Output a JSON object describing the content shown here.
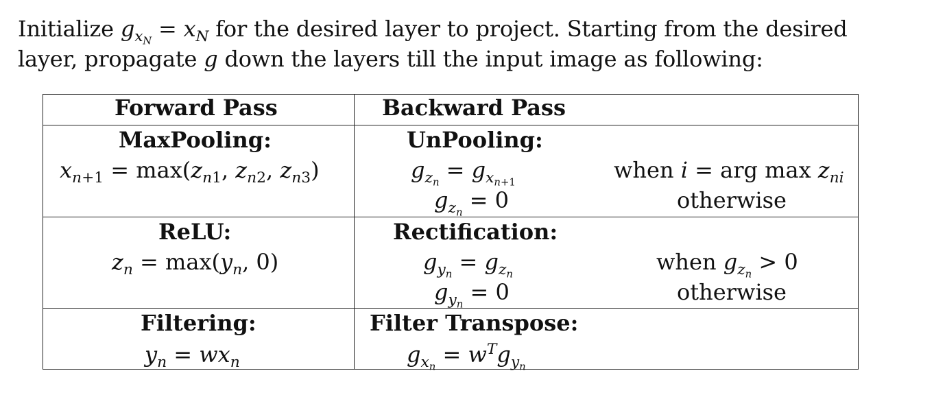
{
  "intro": {
    "line1_a": "Initialize ",
    "line1_gx": "g",
    "line1_gx_sub": "x",
    "line1_gx_subsub": "N",
    "line1_eq": " = ",
    "line1_x": "x",
    "line1_x_sub": "N",
    "line1_b": " for the desired layer to project.  Starting from the desired",
    "line2_a": "layer, propagate ",
    "line2_g": "g",
    "line2_b": " down the layers till the input image as following:"
  },
  "table": {
    "headers": {
      "forward": "Forward Pass",
      "backward": "Backward Pass"
    },
    "rows": [
      {
        "forward_title": "MaxPooling:",
        "forward_eq": "x_{n+1} = max(z_{n1}, z_{n2}, z_{n3})",
        "backward_title": "UnPooling:",
        "backward_eq1": "g_{z_n} = g_{x_{n+1}}",
        "backward_eq2": "g_{z_n} = 0",
        "cond1": "when i = arg max z_{ni}",
        "cond2": "otherwise"
      },
      {
        "forward_title": "ReLU:",
        "forward_eq": "z_n = max(y_n, 0)",
        "backward_title": "Rectification:",
        "backward_eq1": "g_{y_n} = g_{z_n}",
        "backward_eq2": "g_{y_n} = 0",
        "cond1": "when g_{z_n} > 0",
        "cond2": "otherwise"
      },
      {
        "forward_title": "Filtering:",
        "forward_eq": "y_n = w x_n",
        "backward_title": "Filter Transpose:",
        "backward_eq1": "g_{x_n} = w^T g_{y_n}"
      }
    ]
  }
}
